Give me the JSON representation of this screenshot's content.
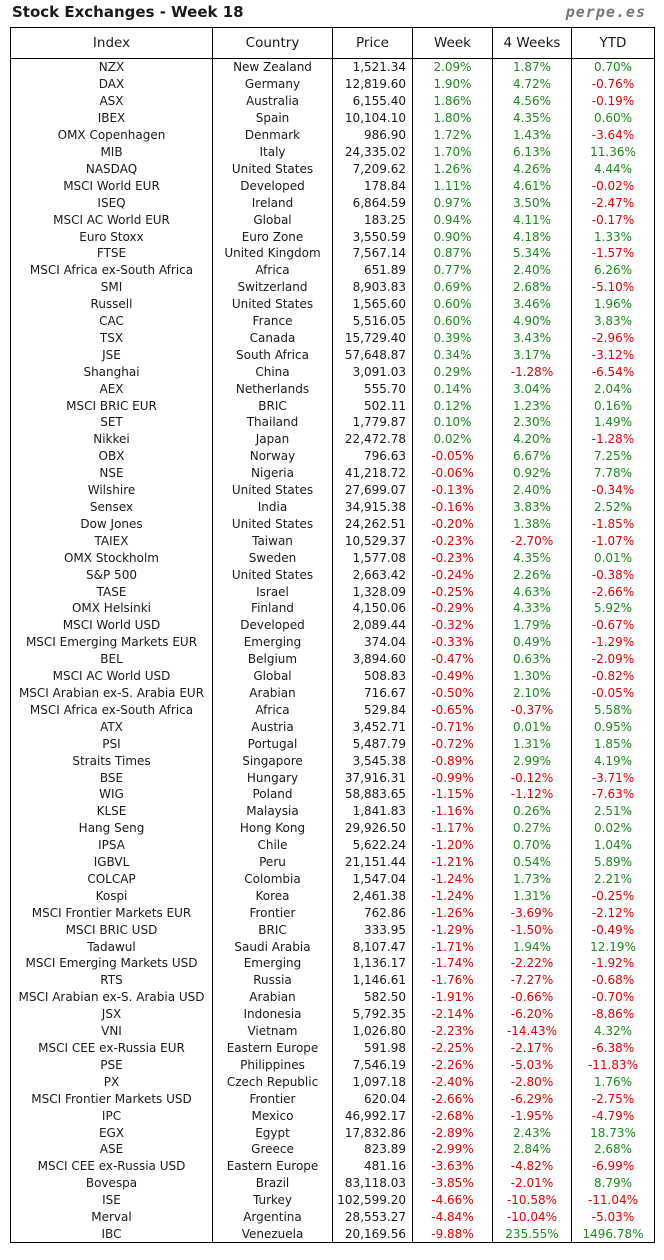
{
  "header": {
    "title": "Stock Exchanges - Week 18",
    "site": "perpe.es"
  },
  "colors": {
    "positive": "#1a8a1a",
    "negative": "#e00000"
  },
  "columns": [
    "Index",
    "Country",
    "Price",
    "Week",
    "4 Weeks",
    "YTD"
  ],
  "rows": [
    [
      "NZX",
      "New Zealand",
      "1,521.34",
      "2.09%",
      "1.87%",
      "0.70%"
    ],
    [
      "DAX",
      "Germany",
      "12,819.60",
      "1.90%",
      "4.72%",
      "-0.76%"
    ],
    [
      "ASX",
      "Australia",
      "6,155.40",
      "1.86%",
      "4.56%",
      "-0.19%"
    ],
    [
      "IBEX",
      "Spain",
      "10,104.10",
      "1.80%",
      "4.35%",
      "0.60%"
    ],
    [
      "OMX Copenhagen",
      "Denmark",
      "986.90",
      "1.72%",
      "1.43%",
      "-3.64%"
    ],
    [
      "MIB",
      "Italy",
      "24,335.02",
      "1.70%",
      "6.13%",
      "11.36%"
    ],
    [
      "NASDAQ",
      "United States",
      "7,209.62",
      "1.26%",
      "4.26%",
      "4.44%"
    ],
    [
      "MSCI World EUR",
      "Developed",
      "178.84",
      "1.11%",
      "4.61%",
      "-0.02%"
    ],
    [
      "ISEQ",
      "Ireland",
      "6,864.59",
      "0.97%",
      "3.50%",
      "-2.47%"
    ],
    [
      "MSCI AC World EUR",
      "Global",
      "183.25",
      "0.94%",
      "4.11%",
      "-0.17%"
    ],
    [
      "Euro Stoxx",
      "Euro Zone",
      "3,550.59",
      "0.90%",
      "4.18%",
      "1.33%"
    ],
    [
      "FTSE",
      "United Kingdom",
      "7,567.14",
      "0.87%",
      "5.34%",
      "-1.57%"
    ],
    [
      "MSCI Africa ex-South Africa",
      "Africa",
      "651.89",
      "0.77%",
      "2.40%",
      "6.26%"
    ],
    [
      "SMI",
      "Switzerland",
      "8,903.83",
      "0.69%",
      "2.68%",
      "-5.10%"
    ],
    [
      "Russell",
      "United States",
      "1,565.60",
      "0.60%",
      "3.46%",
      "1.96%"
    ],
    [
      "CAC",
      "France",
      "5,516.05",
      "0.60%",
      "4.90%",
      "3.83%"
    ],
    [
      "TSX",
      "Canada",
      "15,729.40",
      "0.39%",
      "3.43%",
      "-2.96%"
    ],
    [
      "JSE",
      "South Africa",
      "57,648.87",
      "0.34%",
      "3.17%",
      "-3.12%"
    ],
    [
      "Shanghai",
      "China",
      "3,091.03",
      "0.29%",
      "-1.28%",
      "-6.54%"
    ],
    [
      "AEX",
      "Netherlands",
      "555.70",
      "0.14%",
      "3.04%",
      "2.04%"
    ],
    [
      "MSCI BRIC EUR",
      "BRIC",
      "502.11",
      "0.12%",
      "1.23%",
      "0.16%"
    ],
    [
      "SET",
      "Thailand",
      "1,779.87",
      "0.10%",
      "2.30%",
      "1.49%"
    ],
    [
      "Nikkei",
      "Japan",
      "22,472.78",
      "0.02%",
      "4.20%",
      "-1.28%"
    ],
    [
      "OBX",
      "Norway",
      "796.63",
      "-0.05%",
      "6.67%",
      "7.25%"
    ],
    [
      "NSE",
      "Nigeria",
      "41,218.72",
      "-0.06%",
      "0.92%",
      "7.78%"
    ],
    [
      "Wilshire",
      "United States",
      "27,699.07",
      "-0.13%",
      "2.40%",
      "-0.34%"
    ],
    [
      "Sensex",
      "India",
      "34,915.38",
      "-0.16%",
      "3.83%",
      "2.52%"
    ],
    [
      "Dow Jones",
      "United States",
      "24,262.51",
      "-0.20%",
      "1.38%",
      "-1.85%"
    ],
    [
      "TAIEX",
      "Taiwan",
      "10,529.37",
      "-0.23%",
      "-2.70%",
      "-1.07%"
    ],
    [
      "OMX Stockholm",
      "Sweden",
      "1,577.08",
      "-0.23%",
      "4.35%",
      "0.01%"
    ],
    [
      "S&P 500",
      "United States",
      "2,663.42",
      "-0.24%",
      "2.26%",
      "-0.38%"
    ],
    [
      "TASE",
      "Israel",
      "1,328.09",
      "-0.25%",
      "4.63%",
      "-2.66%"
    ],
    [
      "OMX Helsinki",
      "Finland",
      "4,150.06",
      "-0.29%",
      "4.33%",
      "5.92%"
    ],
    [
      "MSCI World USD",
      "Developed",
      "2,089.44",
      "-0.32%",
      "1.79%",
      "-0.67%"
    ],
    [
      "MSCI Emerging Markets EUR",
      "Emerging",
      "374.04",
      "-0.33%",
      "0.49%",
      "-1.29%"
    ],
    [
      "BEL",
      "Belgium",
      "3,894.60",
      "-0.47%",
      "0.63%",
      "-2.09%"
    ],
    [
      "MSCI AC World USD",
      "Global",
      "508.83",
      "-0.49%",
      "1.30%",
      "-0.82%"
    ],
    [
      "MSCI Arabian ex-S. Arabia EUR",
      "Arabian",
      "716.67",
      "-0.50%",
      "2.10%",
      "-0.05%"
    ],
    [
      "MSCI Africa ex-South Africa",
      "Africa",
      "529.84",
      "-0.65%",
      "-0.37%",
      "5.58%"
    ],
    [
      "ATX",
      "Austria",
      "3,452.71",
      "-0.71%",
      "0.01%",
      "0.95%"
    ],
    [
      "PSI",
      "Portugal",
      "5,487.79",
      "-0.72%",
      "1.31%",
      "1.85%"
    ],
    [
      "Straits Times",
      "Singapore",
      "3,545.38",
      "-0.89%",
      "2.99%",
      "4.19%"
    ],
    [
      "BSE",
      "Hungary",
      "37,916.31",
      "-0.99%",
      "-0.12%",
      "-3.71%"
    ],
    [
      "WIG",
      "Poland",
      "58,883.65",
      "-1.15%",
      "-1.12%",
      "-7.63%"
    ],
    [
      "KLSE",
      "Malaysia",
      "1,841.83",
      "-1.16%",
      "0.26%",
      "2.51%"
    ],
    [
      "Hang Seng",
      "Hong Kong",
      "29,926.50",
      "-1.17%",
      "0.27%",
      "0.02%"
    ],
    [
      "IPSA",
      "Chile",
      "5,622.24",
      "-1.20%",
      "0.70%",
      "1.04%"
    ],
    [
      "IGBVL",
      "Peru",
      "21,151.44",
      "-1.21%",
      "0.54%",
      "5.89%"
    ],
    [
      "COLCAP",
      "Colombia",
      "1,547.04",
      "-1.24%",
      "1.73%",
      "2.21%"
    ],
    [
      "Kospi",
      "Korea",
      "2,461.38",
      "-1.24%",
      "1.31%",
      "-0.25%"
    ],
    [
      "MSCI Frontier Markets EUR",
      "Frontier",
      "762.86",
      "-1.26%",
      "-3.69%",
      "-2.12%"
    ],
    [
      "MSCI BRIC USD",
      "BRIC",
      "333.95",
      "-1.29%",
      "-1.50%",
      "-0.49%"
    ],
    [
      "Tadawul",
      "Saudi Arabia",
      "8,107.47",
      "-1.71%",
      "1.94%",
      "12.19%"
    ],
    [
      "MSCI Emerging Markets USD",
      "Emerging",
      "1,136.17",
      "-1.74%",
      "-2.22%",
      "-1.92%"
    ],
    [
      "RTS",
      "Russia",
      "1,146.61",
      "-1.76%",
      "-7.27%",
      "-0.68%"
    ],
    [
      "MSCI Arabian ex-S. Arabia USD",
      "Arabian",
      "582.50",
      "-1.91%",
      "-0.66%",
      "-0.70%"
    ],
    [
      "JSX",
      "Indonesia",
      "5,792.35",
      "-2.14%",
      "-6.20%",
      "-8.86%"
    ],
    [
      "VNI",
      "Vietnam",
      "1,026.80",
      "-2.23%",
      "-14.43%",
      "4.32%"
    ],
    [
      "MSCI CEE ex-Russia EUR",
      "Eastern Europe",
      "591.98",
      "-2.25%",
      "-2.17%",
      "-6.38%"
    ],
    [
      "PSE",
      "Philippines",
      "7,546.19",
      "-2.26%",
      "-5.03%",
      "-11.83%"
    ],
    [
      "PX",
      "Czech Republic",
      "1,097.18",
      "-2.40%",
      "-2.80%",
      "1.76%"
    ],
    [
      "MSCI Frontier Markets USD",
      "Frontier",
      "620.04",
      "-2.66%",
      "-6.29%",
      "-2.75%"
    ],
    [
      "IPC",
      "Mexico",
      "46,992.17",
      "-2.68%",
      "-1.95%",
      "-4.79%"
    ],
    [
      "EGX",
      "Egypt",
      "17,832.86",
      "-2.89%",
      "2.43%",
      "18.73%"
    ],
    [
      "ASE",
      "Greece",
      "823.89",
      "-2.99%",
      "2.84%",
      "2.68%"
    ],
    [
      "MSCI CEE ex-Russia USD",
      "Eastern Europe",
      "481.16",
      "-3.63%",
      "-4.82%",
      "-6.99%"
    ],
    [
      "Bovespa",
      "Brazil",
      "83,118.03",
      "-3.85%",
      "-2.01%",
      "8.79%"
    ],
    [
      "ISE",
      "Turkey",
      "102,599.20",
      "-4.66%",
      "-10.58%",
      "-11.04%"
    ],
    [
      "Merval",
      "Argentina",
      "28,553.27",
      "-4.84%",
      "-10.04%",
      "-5.03%"
    ],
    [
      "IBC",
      "Venezuela",
      "20,169.56",
      "-9.88%",
      "235.55%",
      "1496.78%"
    ]
  ]
}
